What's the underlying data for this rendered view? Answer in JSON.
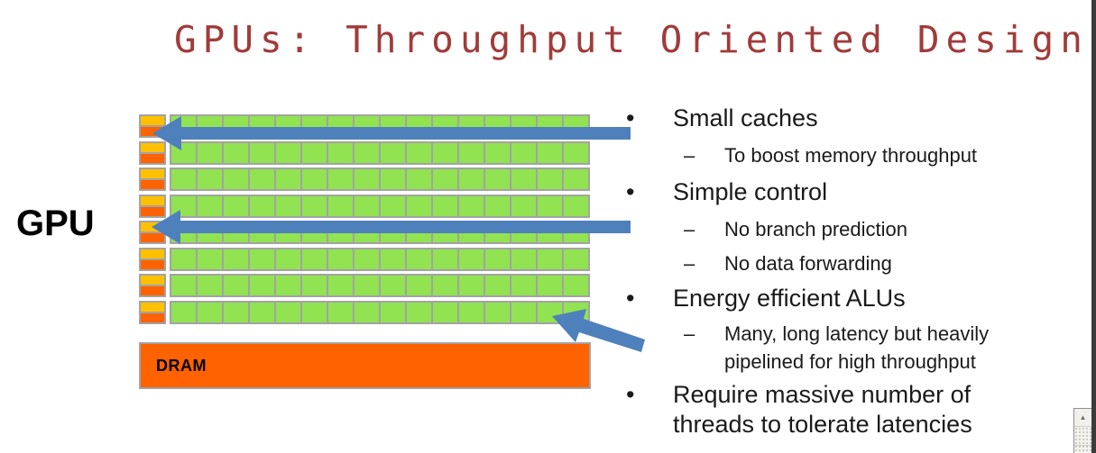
{
  "slide": {
    "title": "GPUs: Throughput Oriented Design",
    "gpu_label": "GPU",
    "dram_label": "DRAM",
    "bullet_char": "•",
    "dash_char": "–",
    "bullets": [
      {
        "label": "Small caches",
        "subs": [
          "To boost memory throughput"
        ]
      },
      {
        "label": "Simple control",
        "subs": [
          "No branch prediction",
          "No data forwarding"
        ]
      },
      {
        "label": "Energy efficient ALUs",
        "subs": [
          "Many, long latency but heavily pipelined for high throughput"
        ]
      },
      {
        "label": "Require massive number of threads to tolerate latencies",
        "subs": []
      }
    ]
  },
  "diagram": {
    "rows": 8,
    "cells_per_row": 16,
    "arrow_count": 3
  },
  "scrollbar": {
    "up_arrow": "▲"
  },
  "colors": {
    "title": "#A03C3A",
    "arrow_blue": "#4E80BC",
    "alu_green": "#91E351",
    "cache_yellow": "#FFC000",
    "cache_orange": "#FF6200",
    "dram_orange": "#FF6200",
    "grid_border": "#A3A3A3",
    "text_black": "#1a1a1a",
    "window_edge": "#3B3B3B"
  }
}
